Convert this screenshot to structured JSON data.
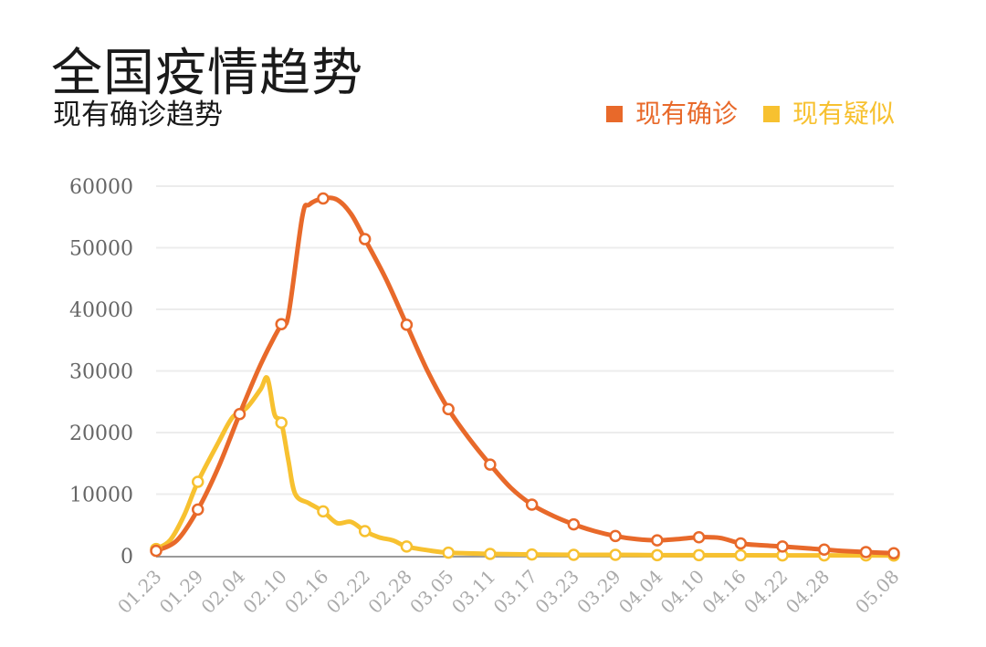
{
  "page": {
    "title": "全国疫情趋势"
  },
  "chart_data": {
    "type": "line",
    "title": "现有确诊趋势",
    "xlabel": "",
    "ylabel": "",
    "ylim": [
      0,
      60000
    ],
    "yticks": [
      0,
      10000,
      20000,
      30000,
      40000,
      50000,
      60000
    ],
    "xticks": [
      "01.23",
      "01.29",
      "02.04",
      "02.10",
      "02.16",
      "02.22",
      "02.28",
      "03.05",
      "03.11",
      "03.17",
      "03.23",
      "03.29",
      "04.04",
      "04.10",
      "04.16",
      "04.22",
      "04.28",
      "05.08"
    ],
    "grid": true,
    "legend_position": "top-right",
    "series": [
      {
        "name": "现有确诊",
        "color": "#e8692a",
        "x": [
          "01.23",
          "01.26",
          "01.29",
          "02.01",
          "02.04",
          "02.07",
          "02.10",
          "02.11",
          "02.13",
          "02.14",
          "02.16",
          "02.18",
          "02.20",
          "02.22",
          "02.25",
          "02.28",
          "03.02",
          "03.05",
          "03.08",
          "03.11",
          "03.14",
          "03.17",
          "03.20",
          "03.23",
          "03.26",
          "03.29",
          "04.01",
          "04.04",
          "04.07",
          "04.10",
          "04.13",
          "04.16",
          "04.19",
          "04.22",
          "04.28",
          "05.02",
          "05.08"
        ],
        "y": [
          800,
          2500,
          7500,
          14500,
          23000,
          31000,
          37600,
          39000,
          55000,
          57000,
          58000,
          57800,
          55500,
          51400,
          45000,
          37500,
          30000,
          23800,
          19000,
          14800,
          11000,
          8300,
          6500,
          5100,
          4000,
          3200,
          2700,
          2500,
          2700,
          3000,
          2900,
          2000,
          1700,
          1500,
          1000,
          700,
          400
        ],
        "markers": [
          "01.23",
          "01.29",
          "02.04",
          "02.10",
          "02.16",
          "02.22",
          "02.28",
          "03.05",
          "03.11",
          "03.17",
          "03.23",
          "03.29",
          "04.04",
          "04.10",
          "04.16",
          "04.22",
          "04.28",
          "05.04",
          "05.08"
        ]
      },
      {
        "name": "现有疑似",
        "color": "#f7c130",
        "x": [
          "01.23",
          "01.25",
          "01.27",
          "01.29",
          "02.01",
          "02.03",
          "02.05",
          "02.07",
          "02.08",
          "02.09",
          "02.10",
          "02.11",
          "02.12",
          "02.14",
          "02.16",
          "02.18",
          "02.20",
          "02.22",
          "02.24",
          "02.26",
          "02.28",
          "03.02",
          "03.05",
          "03.11",
          "03.17",
          "03.23",
          "03.29",
          "04.04",
          "04.10",
          "04.16",
          "04.22",
          "04.28",
          "05.04",
          "05.08"
        ],
        "y": [
          1100,
          2500,
          6500,
          12000,
          18500,
          22500,
          24000,
          27000,
          28800,
          23000,
          21600,
          15500,
          10000,
          8500,
          7200,
          5300,
          5500,
          4000,
          3000,
          2500,
          1500,
          900,
          500,
          300,
          200,
          150,
          150,
          100,
          100,
          80,
          60,
          50,
          50,
          40
        ],
        "markers": [
          "01.23",
          "01.29",
          "02.10",
          "02.16",
          "02.22",
          "02.28",
          "03.05",
          "03.11",
          "03.17",
          "03.23",
          "03.29",
          "04.04",
          "04.10",
          "04.16",
          "04.22",
          "04.28",
          "05.04",
          "05.08"
        ]
      }
    ]
  }
}
